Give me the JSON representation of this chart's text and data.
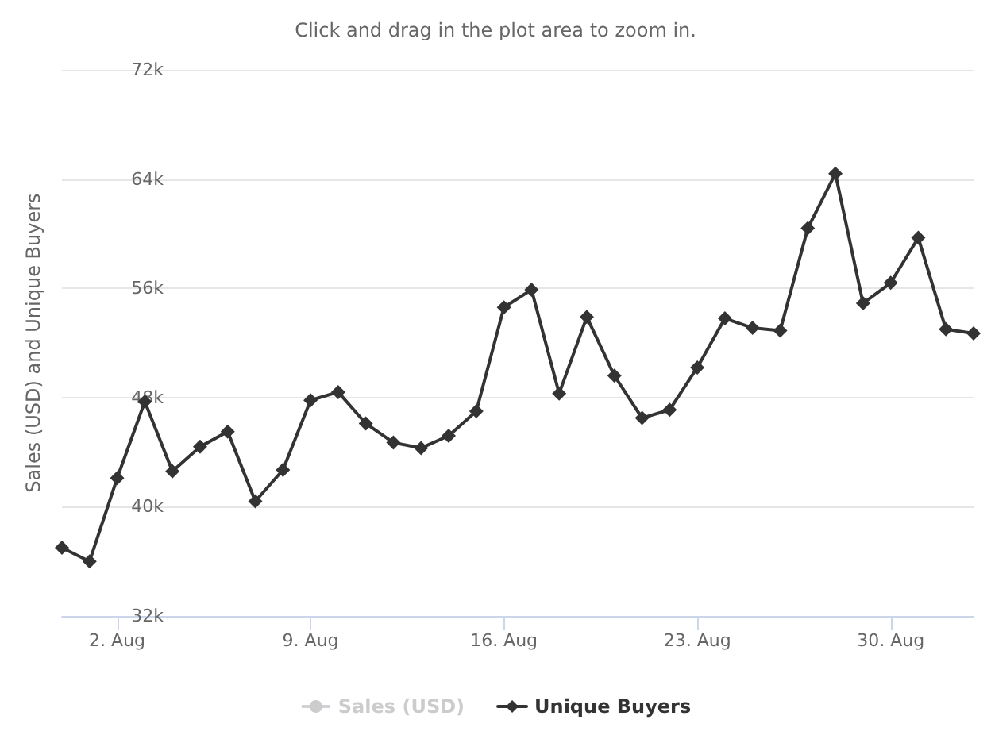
{
  "chart_data": {
    "type": "line",
    "subtitle": "Click and drag in the plot area to zoom in.",
    "ylabel": "Sales (USD) and Unique Buyers",
    "x": [
      "--07-31",
      "--08-01",
      "--08-02",
      "--08-03",
      "--08-04",
      "--08-05",
      "--08-06",
      "--08-07",
      "--08-08",
      "--08-09",
      "--08-10",
      "--08-11",
      "--08-12",
      "--08-13",
      "--08-14",
      "--08-15",
      "--08-16",
      "--08-17",
      "--08-18",
      "--08-19",
      "--08-20",
      "--08-21",
      "--08-22",
      "--08-23",
      "--08-24",
      "--08-25",
      "--08-26",
      "--08-27",
      "--08-28",
      "--08-29",
      "--08-30",
      "--08-31",
      "--09-01",
      "--09-02"
    ],
    "series": [
      {
        "name": "Sales (USD)",
        "color": "#cccccc",
        "marker": "circle",
        "values": [
          null,
          null,
          null,
          null,
          null,
          null,
          null,
          null,
          null,
          null,
          null,
          null,
          null,
          null,
          null,
          null,
          null,
          null,
          null,
          null,
          null,
          null,
          null,
          null,
          null,
          null,
          null,
          null,
          null,
          null,
          null,
          null,
          null,
          null
        ]
      },
      {
        "name": "Unique Buyers",
        "color": "#333333",
        "marker": "diamond",
        "values": [
          37000,
          36000,
          42100,
          47700,
          42600,
          44400,
          45500,
          40400,
          42700,
          47800,
          48400,
          46100,
          44700,
          44300,
          45200,
          47000,
          54600,
          55900,
          48300,
          53900,
          49600,
          46500,
          47100,
          50200,
          53800,
          53100,
          52900,
          60400,
          64400,
          54900,
          56400,
          59700,
          53000,
          52700
        ]
      }
    ],
    "xlim": [
      "--07-31",
      "--09-02"
    ],
    "xticks": [
      {
        "value": "--08-02",
        "label": "2. Aug"
      },
      {
        "value": "--08-09",
        "label": "9. Aug"
      },
      {
        "value": "--08-16",
        "label": "16. Aug"
      },
      {
        "value": "--08-23",
        "label": "23. Aug"
      },
      {
        "value": "--08-30",
        "label": "30. Aug"
      }
    ],
    "ylim": [
      32000,
      72000
    ],
    "yticks": [
      {
        "value": 32000,
        "label": "32k"
      },
      {
        "value": 40000,
        "label": "40k"
      },
      {
        "value": 48000,
        "label": "48k"
      },
      {
        "value": 56000,
        "label": "56k"
      },
      {
        "value": 64000,
        "label": "64k"
      },
      {
        "value": 72000,
        "label": "72k"
      }
    ],
    "grid": "y",
    "legend": "bottom",
    "line_style": "solid"
  }
}
